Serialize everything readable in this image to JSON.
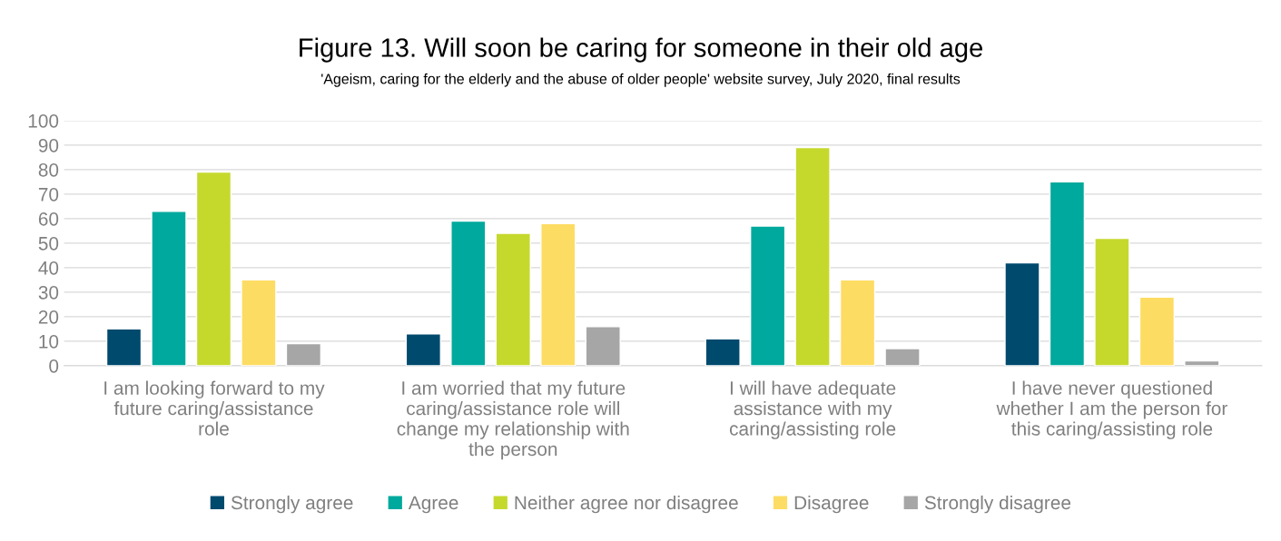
{
  "chart_data": {
    "type": "bar",
    "title": "Figure 13. Will soon be caring for someone in their old age",
    "subtitle": "'Ageism, caring for the elderly and the abuse of older people' website survey, July 2020, final results",
    "categories": [
      "I am looking forward to my future caring/assistance role",
      "I am worried that my future caring/assistance role will change my relationship with the person",
      "I will have adequate assistance with my caring/assisting role",
      "I have never questioned whether I am the person for this caring/assisting role"
    ],
    "series": [
      {
        "name": "Strongly agree",
        "color": "#004a6e",
        "values": [
          15,
          13,
          11,
          42
        ]
      },
      {
        "name": "Agree",
        "color": "#00a99d",
        "values": [
          63,
          59,
          57,
          75
        ]
      },
      {
        "name": "Neither agree nor disagree",
        "color": "#c5d92d",
        "values": [
          79,
          54,
          89,
          52
        ]
      },
      {
        "name": "Disagree",
        "color": "#fddc63",
        "values": [
          35,
          58,
          35,
          28
        ]
      },
      {
        "name": "Strongly disagree",
        "color": "#a6a6a6",
        "values": [
          9,
          16,
          7,
          2
        ]
      }
    ],
    "ylim": [
      0,
      100
    ],
    "yticks": [
      0,
      10,
      20,
      30,
      40,
      50,
      60,
      70,
      80,
      90,
      100
    ],
    "grid": "y",
    "legend": "bottom"
  }
}
